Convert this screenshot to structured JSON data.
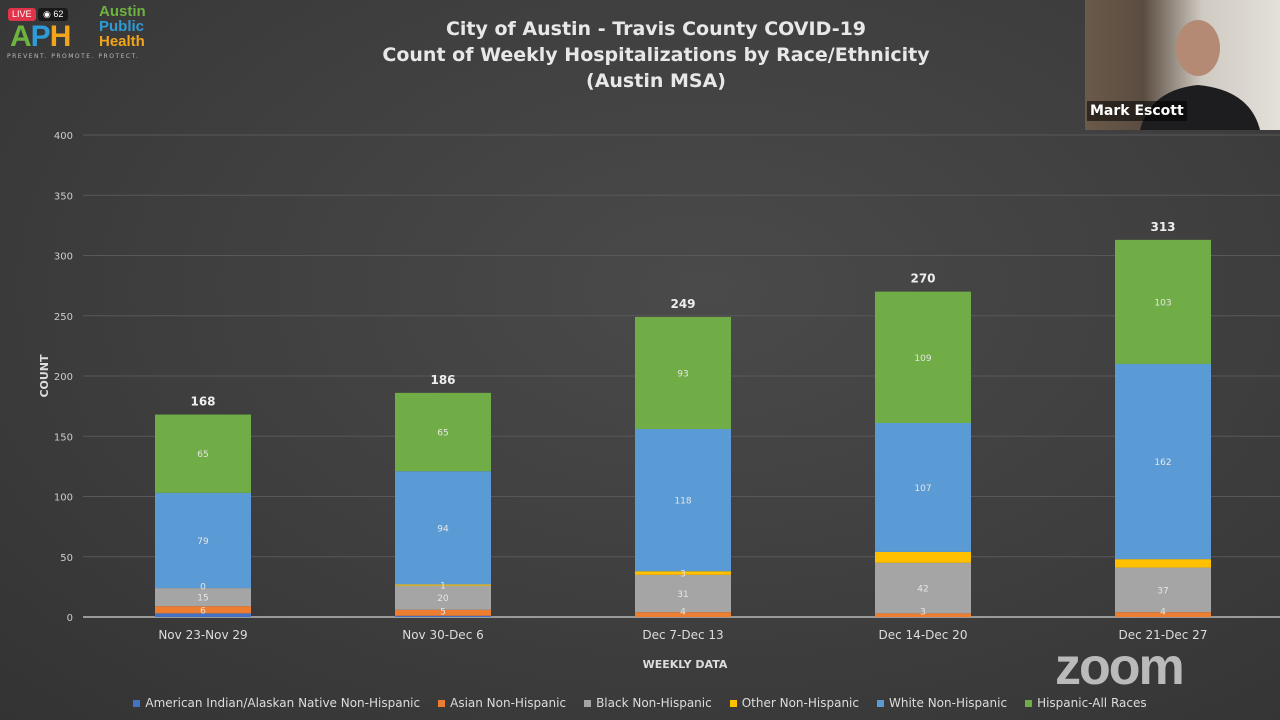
{
  "overlay": {
    "live_label": "LIVE",
    "viewer_count": "62",
    "logo_letters": "APH",
    "org_name": [
      "Austin",
      "Public",
      "Health"
    ],
    "tagline": "PREVENT. PROMOTE. PROTECT.",
    "presenter_name": "Mark Escott",
    "zoom_watermark": "zoom"
  },
  "chart_data": {
    "type": "bar",
    "stacked": true,
    "title": [
      "City of Austin - Travis County COVID-19",
      "Count of Weekly Hospitalizations by Race/Ethnicity",
      "(Austin MSA)"
    ],
    "xlabel": "WEEKLY DATA",
    "ylabel": "COUNT",
    "ylim": [
      0,
      400
    ],
    "yticks": [
      0,
      50,
      100,
      150,
      200,
      250,
      300,
      350,
      400
    ],
    "grid": true,
    "legend_placement": "bottom",
    "categories": [
      "Nov 23-Nov 29",
      "Nov 30-Dec 6",
      "Dec 7-Dec 13",
      "Dec 14-Dec 20",
      "Dec 21-Dec 27"
    ],
    "totals": [
      168,
      186,
      249,
      270,
      313
    ],
    "series": [
      {
        "name": "American Indian/Alaskan Native Non-Hispanic",
        "color": "#4472c4",
        "values": [
          3,
          1,
          0,
          0,
          0
        ],
        "labels": [
          "",
          "",
          "",
          "",
          ""
        ]
      },
      {
        "name": "Asian Non-Hispanic",
        "color": "#ed7d31",
        "values": [
          6,
          5,
          4,
          3,
          4
        ],
        "labels": [
          "6",
          "5",
          "4",
          "3",
          "4"
        ]
      },
      {
        "name": "Black Non-Hispanic",
        "color": "#a5a5a5",
        "values": [
          15,
          20,
          31,
          42,
          37
        ],
        "labels": [
          "15",
          "20",
          "31",
          "42",
          "37"
        ]
      },
      {
        "name": "Other Non-Hispanic",
        "color": "#ffc000",
        "values": [
          0,
          1,
          3,
          9,
          7
        ],
        "labels": [
          "0",
          "1",
          "3",
          "",
          ""
        ]
      },
      {
        "name": "White Non-Hispanic",
        "color": "#5b9bd5",
        "values": [
          79,
          94,
          118,
          107,
          162
        ],
        "labels": [
          "79",
          "94",
          "118",
          "107",
          "162"
        ]
      },
      {
        "name": "Hispanic-All Races",
        "color": "#70ad47",
        "values": [
          65,
          65,
          93,
          109,
          103
        ],
        "labels": [
          "65",
          "65",
          "93",
          "109",
          "103"
        ]
      }
    ]
  }
}
